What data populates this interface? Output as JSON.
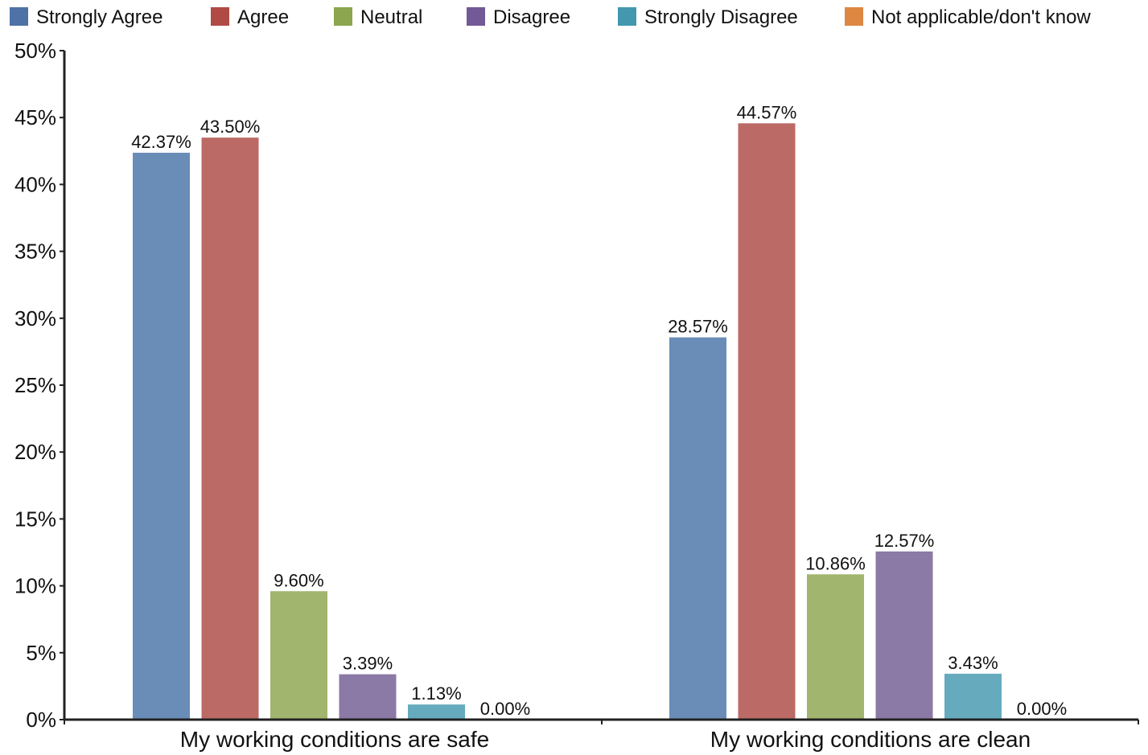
{
  "chart_data": {
    "type": "bar",
    "categories": [
      "My working conditions are safe",
      "My working conditions are clean"
    ],
    "series": [
      {
        "name": "Strongly Agree",
        "color": "#4e72a6",
        "bar_color": "#6a8db8",
        "values": [
          42.37,
          28.57
        ],
        "labels": [
          "42.37%",
          "28.57%"
        ]
      },
      {
        "name": "Agree",
        "color": "#b04a45",
        "bar_color": "#bc6a66",
        "values": [
          43.5,
          44.57
        ],
        "labels": [
          "43.50%",
          "44.57%"
        ]
      },
      {
        "name": "Neutral",
        "color": "#8ba64e",
        "bar_color": "#a1b56f",
        "values": [
          9.6,
          10.86
        ],
        "labels": [
          "9.60%",
          "10.86%"
        ]
      },
      {
        "name": "Disagree",
        "color": "#735996",
        "bar_color": "#8b79a6",
        "values": [
          3.39,
          12.57
        ],
        "labels": [
          "3.39%",
          "12.57%"
        ]
      },
      {
        "name": "Strongly Disagree",
        "color": "#4398ad",
        "bar_color": "#66abbd",
        "values": [
          1.13,
          3.43
        ],
        "labels": [
          "1.13%",
          "3.43%"
        ]
      },
      {
        "name": "Not applicable/don't know",
        "color": "#dd8742",
        "bar_color": "#e39a5e",
        "values": [
          0.0,
          0.0
        ],
        "labels": [
          "0.00%",
          "0.00%"
        ]
      }
    ],
    "ylim": [
      0,
      50
    ],
    "yticks": [
      "0%",
      "5%",
      "10%",
      "15%",
      "20%",
      "25%",
      "30%",
      "35%",
      "40%",
      "45%",
      "50%"
    ],
    "legend_position": "top",
    "grid": false,
    "title": "",
    "xlabel": "",
    "ylabel": ""
  }
}
